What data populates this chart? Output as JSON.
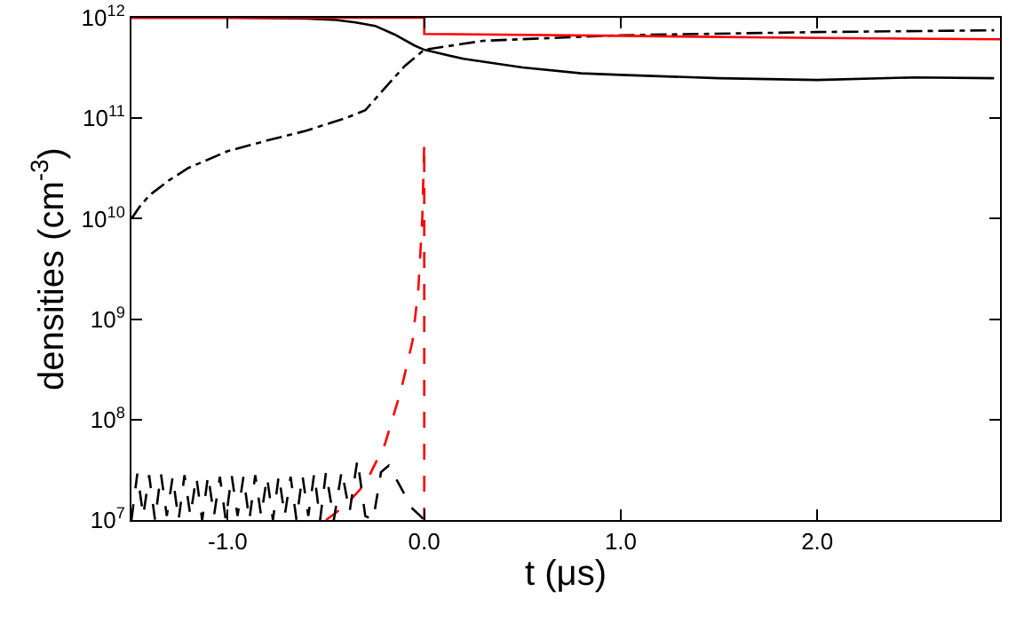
{
  "chart_data": {
    "type": "line",
    "xlabel": "t (μs)",
    "ylabel": "densities (cm$^{-3}$)",
    "log": "y",
    "grid": false,
    "marker": "none",
    "xlim": [
      -1.49,
      2.93
    ],
    "xticks": [
      {
        "value": -1,
        "label": "-1.0"
      },
      {
        "value": 0,
        "label": "0.0"
      },
      {
        "value": 1,
        "label": "1.0"
      },
      {
        "value": 2,
        "label": "2.0"
      }
    ],
    "ylim": [
      10000000.0,
      1000000000000.0
    ],
    "yticks": [
      {
        "value": 10000000.0,
        "label": "10$^{7}$"
      },
      {
        "value": 100000000.0,
        "label": "10$^{8}$"
      },
      {
        "value": 1000000000.0,
        "label": "10$^{9}$"
      },
      {
        "value": 10000000000.0,
        "label": "10$^{10}$"
      },
      {
        "value": 100000000000.0,
        "label": "10$^{11}$"
      },
      {
        "value": 1000000000000.0,
        "label": "10$^{12}$"
      }
    ],
    "series": [
      {
        "color": "#000000",
        "line_style": "solid",
        "x": [
          -1.49,
          -1.0,
          -0.6,
          -0.45,
          -0.35,
          -0.25,
          -0.15,
          -0.05,
          0,
          0.2,
          0.5,
          0.8,
          1.0,
          1.5,
          2.0,
          2.5,
          2.9
        ],
        "values": [
          1000000000000.0,
          1000000000000.0,
          980000000000.0,
          950000000000.0,
          900000000000.0,
          830000000000.0,
          680000000000.0,
          530000000000.0,
          480000000000.0,
          390000000000.0,
          320000000000.0,
          280000000000.0,
          270000000000.0,
          250000000000.0,
          240000000000.0,
          255000000000.0,
          250000000000.0
        ]
      },
      {
        "color": "#000000",
        "line_style": "dashdot",
        "x": [
          -1.49,
          -1.45,
          -1.4,
          -1.3,
          -1.2,
          -1.0,
          -0.8,
          -0.6,
          -0.5,
          -0.4,
          -0.3,
          -0.2,
          -0.1,
          0,
          0.3,
          1.0,
          2.0,
          2.9
        ],
        "values": [
          10000000000.0,
          13000000000.0,
          17000000000.0,
          24000000000.0,
          32000000000.0,
          47000000000.0,
          60000000000.0,
          75000000000.0,
          87000000000.0,
          100000000000.0,
          120000000000.0,
          200000000000.0,
          330000000000.0,
          480000000000.0,
          590000000000.0,
          670000000000.0,
          720000000000.0,
          750000000000.0
        ]
      },
      {
        "color": "#ff0000",
        "line_style": "solid",
        "x": [
          -1.49,
          0,
          0,
          1.0,
          2.0,
          2.93
        ],
        "values": [
          1000000000000.0,
          1000000000000.0,
          690000000000.0,
          660000000000.0,
          630000000000.0,
          610000000000.0
        ]
      },
      {
        "color": "#ff0000",
        "line_style": "dashed",
        "x": [
          -0.5,
          -0.4,
          -0.3,
          -0.2,
          -0.12,
          -0.06,
          -0.03,
          -0.01,
          0,
          0,
          0.001
        ],
        "values": [
          10000000.0,
          14000000.0,
          23000000.0,
          57000000.0,
          190000000.0,
          600000000.0,
          2000000000.0,
          10000000000.0,
          56000000000.0,
          10000000.0,
          10000000.0
        ]
      },
      {
        "color": "#000000",
        "line_style": "dashed",
        "x": [
          -1.49,
          -1.46,
          -1.43,
          -1.4,
          -1.37,
          -1.34,
          -1.31,
          -1.28,
          -1.25,
          -1.22,
          -1.19,
          -1.16,
          -1.13,
          -1.1,
          -1.07,
          -1.04,
          -1.01,
          -0.98,
          -0.95,
          -0.92,
          -0.89,
          -0.86,
          -0.83,
          -0.8,
          -0.77,
          -0.74,
          -0.71,
          -0.68,
          -0.65,
          -0.62,
          -0.59,
          -0.56,
          -0.53,
          -0.5,
          -0.46,
          -0.42,
          -0.38,
          -0.34,
          -0.3,
          -0.26,
          -0.22,
          -0.18,
          -0.14,
          -0.1,
          -0.06,
          -0.02,
          0
        ],
        "values": [
          10000000.0,
          29000000.0,
          11000000.0,
          28000000.0,
          10000000.0,
          29000000.0,
          11000000.0,
          27000000.0,
          10000000.0,
          28000000.0,
          11000000.0,
          27000000.0,
          10000000.0,
          28000000.0,
          11000000.0,
          27000000.0,
          10000000.0,
          28000000.0,
          11000000.0,
          27000000.0,
          10000000.0,
          28000000.0,
          11000000.0,
          27000000.0,
          10000000.0,
          28000000.0,
          11000000.0,
          27000000.0,
          10000000.0,
          28000000.0,
          11000000.0,
          29000000.0,
          10000000.0,
          30000000.0,
          10000000.0,
          31000000.0,
          12000000.0,
          40000000.0,
          11000000.0,
          10000000.0,
          30000000.0,
          35000000.0,
          25000000.0,
          18000000.0,
          13000000.0,
          11000000.0,
          10000000.0
        ]
      }
    ]
  }
}
